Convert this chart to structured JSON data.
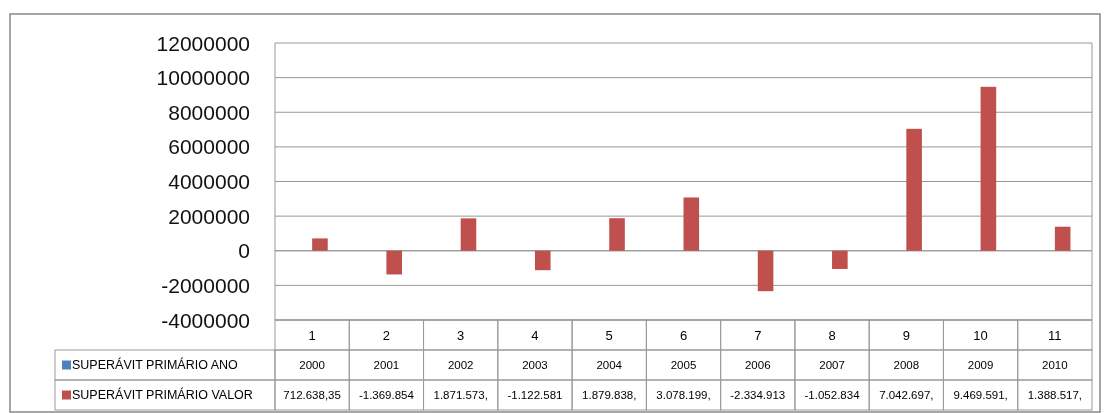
{
  "chart_data": {
    "type": "bar",
    "categories": [
      "1",
      "2",
      "3",
      "4",
      "5",
      "6",
      "7",
      "8",
      "9",
      "10",
      "11"
    ],
    "series": [
      {
        "name": "SUPERÁVIT PRIMÁRIO ANO",
        "color": "#4f81bd",
        "values": [
          2000,
          2001,
          2002,
          2003,
          2004,
          2005,
          2006,
          2007,
          2008,
          2009,
          2010
        ],
        "value_labels": [
          "2000",
          "2001",
          "2002",
          "2003",
          "2004",
          "2005",
          "2006",
          "2007",
          "2008",
          "2009",
          "2010"
        ]
      },
      {
        "name": "SUPERÁVIT PRIMÁRIO VALOR",
        "color": "#c0504d",
        "values": [
          712638.35,
          -1369854,
          1871573,
          -1122581,
          1879838,
          3078199,
          -2334913,
          -1052834,
          7042697,
          9469591,
          1388517
        ],
        "value_labels": [
          "712.638,35",
          "-1.369.854",
          "1.871.573,",
          "-1.122.581",
          "1.879.838,",
          "3.078.199,",
          "-2.334.913",
          "-1.052.834",
          "7.042.697,",
          "9.469.591,",
          "1.388.517,"
        ]
      }
    ],
    "ylim": [
      -4000000,
      12000000
    ],
    "yticks": [
      -4000000,
      -2000000,
      0,
      2000000,
      4000000,
      6000000,
      8000000,
      10000000,
      12000000
    ],
    "grid": "y",
    "legend": "bottom"
  }
}
